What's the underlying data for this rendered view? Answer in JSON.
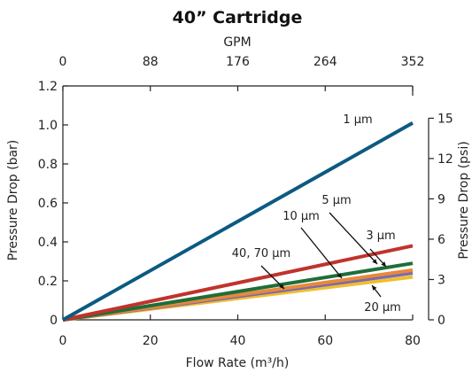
{
  "chart_data": {
    "type": "line",
    "title": "40” Cartridge",
    "xlabel": "Flow Rate (m³/h)",
    "ylabel": "Pressure Drop (bar)",
    "x2label": "GPM",
    "y2label": "Pressure Drop (psi)",
    "xlim": [
      0,
      80
    ],
    "ylim": [
      0,
      1.2
    ],
    "x2lim": [
      0,
      352
    ],
    "y2lim": [
      0,
      17.4
    ],
    "xticks": [
      "0",
      "20",
      "40",
      "60",
      "80"
    ],
    "yticks": [
      "0",
      "0.2",
      "0.4",
      "0.6",
      "0.8",
      "1.0",
      "1.2"
    ],
    "x2ticks": [
      "0",
      "88",
      "176",
      "264",
      "352"
    ],
    "y2ticks": [
      "0",
      "3",
      "6",
      "9",
      "12",
      "15"
    ],
    "grid": false,
    "series": [
      {
        "name": "1 µm",
        "color": "#0c5a82",
        "x": [
          0,
          80
        ],
        "y": [
          0,
          1.01
        ]
      },
      {
        "name": "3 µm",
        "color": "#c0332b",
        "x": [
          0,
          80
        ],
        "y": [
          0,
          0.38
        ]
      },
      {
        "name": "5 µm",
        "color": "#1e6e3a",
        "x": [
          0,
          80
        ],
        "y": [
          0,
          0.29
        ]
      },
      {
        "name": "10 µm",
        "color": "#e8893a",
        "x": [
          0,
          80
        ],
        "y": [
          0,
          0.255
        ]
      },
      {
        "name": "20 µm",
        "color": "#7b6ab0",
        "x": [
          0,
          80
        ],
        "y": [
          0,
          0.24
        ]
      },
      {
        "name": "40, 70 µm",
        "color": "#f0be2e",
        "x": [
          0,
          80
        ],
        "y": [
          0,
          0.22
        ]
      }
    ]
  }
}
